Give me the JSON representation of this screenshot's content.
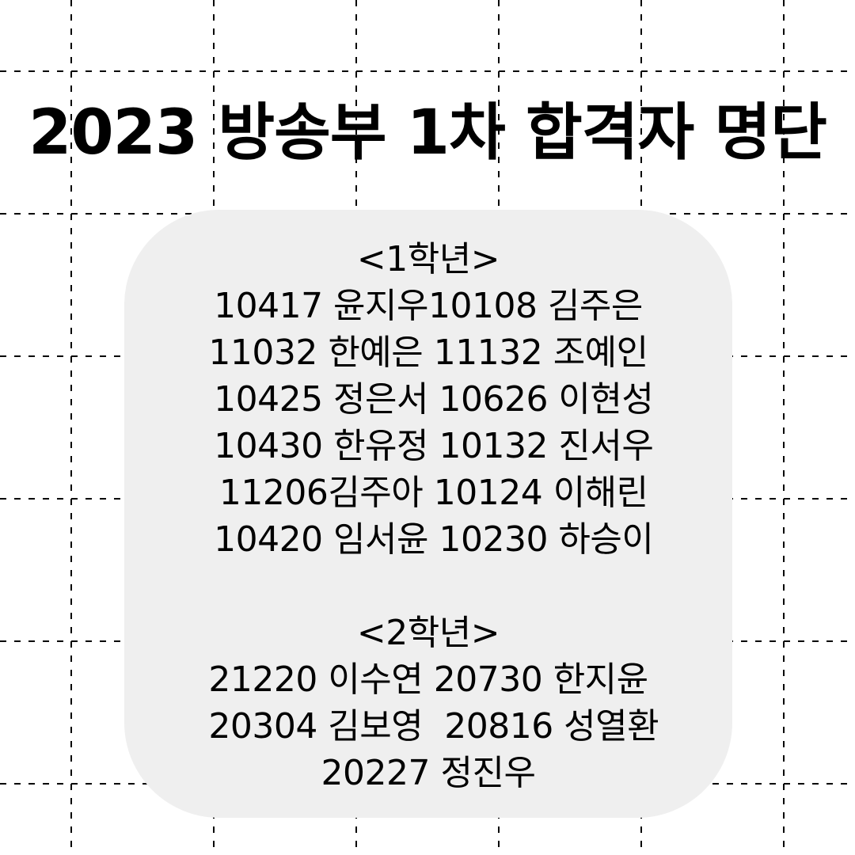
{
  "title": "2023 방송부 1차 합격자 명단",
  "colors": {
    "background": "#ffffff",
    "card": "#efefef",
    "text": "#000000",
    "grid": "#000000"
  },
  "grade1": {
    "heading": "<1학년>",
    "lines": [
      "10417 윤지우10108 김주은",
      "11032 한예은 11132 조예인",
      " 10425 정은서 10626 이현성",
      " 10430 한유정 10132 진서우",
      " 11206김주아 10124 이해린",
      " 10420 임서윤 10230 하승이"
    ]
  },
  "grade2": {
    "heading": "<2학년>",
    "lines": [
      "21220 이수연 20730 한지윤",
      " 20304 김보영  20816 성열환",
      "20227 정진우"
    ]
  }
}
